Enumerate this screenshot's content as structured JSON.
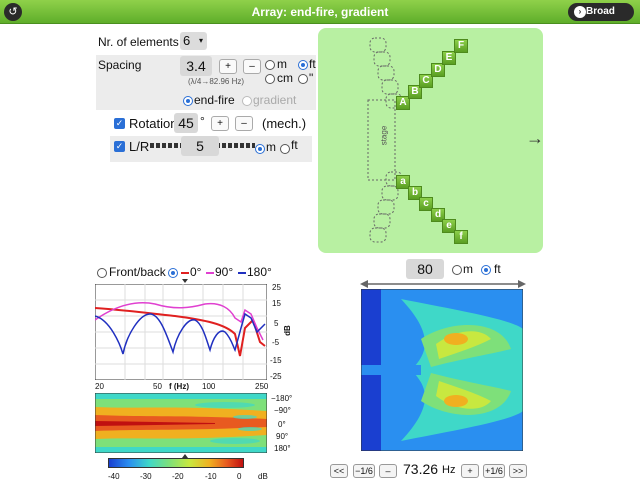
{
  "window": {
    "title": "Array: end-fire, gradient",
    "broad_label": "Broad",
    "back_icon": "back-arrow-icon"
  },
  "controls": {
    "elements_label": "Nr. of elements",
    "elements_value": "6",
    "spacing_label": "Spacing",
    "spacing_value": "3.4",
    "spacing_hint": "(λ/4→82.96 Hz)",
    "plus": "+",
    "minus": "–",
    "unit_m": "m",
    "unit_ft": "ft",
    "unit_cm": "cm",
    "unit_in": "\"",
    "mode_endfire": "end-fire",
    "mode_gradient": "gradient",
    "rotation_label": "Rotation",
    "rotation_value": "45",
    "rotation_unit": "°",
    "rotation_note": "(mech.)",
    "lr_label": "L/R",
    "lr_value": "5",
    "lr_unit_m": "m",
    "lr_unit_ft": "ft"
  },
  "stage": {
    "label": "stage",
    "arrow": "→",
    "upper_letters": [
      "A",
      "B",
      "C",
      "D",
      "E",
      "F"
    ],
    "lower_letters": [
      "a",
      "b",
      "c",
      "d",
      "e",
      "f"
    ]
  },
  "response": {
    "mode_front_back": "Front/back",
    "legend": [
      {
        "label": "0°",
        "color": "#e02020"
      },
      {
        "label": "90°",
        "color": "#e040d0"
      },
      {
        "label": "180°",
        "color": "#2030c0"
      }
    ],
    "y_ticks": [
      "25",
      "15",
      "5",
      "-5",
      "-15",
      "-25"
    ],
    "y_unit": "dB",
    "x_ticks": [
      "20",
      "50",
      "100",
      "250"
    ],
    "x_label": "f (Hz)",
    "angle_ticks": [
      "−180°",
      "−90°",
      "0°",
      "90°",
      "180°"
    ],
    "scale_ticks": [
      "-40",
      "-30",
      "-20",
      "-10",
      "0"
    ],
    "scale_unit": "dB"
  },
  "map": {
    "distance_value": "80",
    "unit_m": "m",
    "unit_ft": "ft",
    "freq_value": "73.26",
    "freq_unit": "Hz",
    "nav_first": "<<",
    "nav_minus_sixth": "−1/6",
    "nav_minus": "–",
    "nav_plus": "+",
    "nav_plus_sixth": "+1/6",
    "nav_last": ">>"
  }
}
